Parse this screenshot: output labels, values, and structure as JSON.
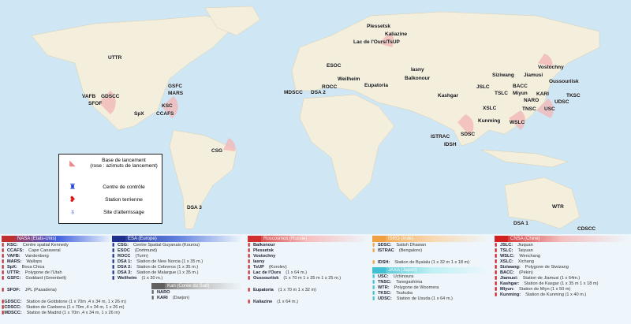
{
  "map": {
    "labels": [
      "UTTR",
      "GSFC",
      "MARS",
      "VAFB",
      "GDSCC",
      "SFOF",
      "KSC",
      "SpX",
      "CCAFS",
      "CSG",
      "DSA 3",
      "ESOC",
      "Weilheim",
      "ROCC",
      "MDSCC",
      "DSA 2",
      "Plessetsk",
      "Kaliazine",
      "Lac de l'Ours/TsUP",
      "Iasny",
      "Balkonour",
      "Eupatoria",
      "Vostochny",
      "Siziwang",
      "Jiamusi",
      "Oussouriisk",
      "BACC",
      "JSLC",
      "Miyun",
      "TSLC",
      "KARI",
      "NARO",
      "TKSC",
      "UDSC",
      "USC",
      "TNSC",
      "Kashgar",
      "XSLC",
      "Kunming",
      "WSLC",
      "SDSC",
      "ISTRAC",
      "IDSH",
      "WTR",
      "DSA 1",
      "CDSCC"
    ],
    "colors": {
      "ocean": "#cfe6f5",
      "land": "#f4efdc",
      "launch_rose": "#f2b8b8",
      "control": "#1a3fd0",
      "station": "#e01818",
      "landing": "#1a3fd0"
    }
  },
  "legend": {
    "launch_base": "Base de lancement",
    "launch_rose": "(rose : azimuts de lancement)",
    "control": "Centre de contrôle",
    "station": "Station terrienne",
    "landing": "Site d'atterrissage"
  },
  "agencies": [
    {
      "header": "NASA (Etats-Unis)",
      "entries": [
        [
          "KSC:",
          "Centre spatial Kennedy"
        ],
        [
          "CCAFS:",
          "Cape Canaveral"
        ],
        [
          "VAFB:",
          "Vandenberg"
        ],
        [
          "MARS:",
          "Wallops"
        ],
        [
          "SpX:",
          "Boca Chica"
        ],
        [
          "UTTR:",
          "Polygone de l'Utah"
        ],
        [
          "GSFC:",
          "Goddard (Greenbelt)"
        ],
        [
          "",
          ""
        ],
        [
          "SFOF:",
          "JPL (Pasadena)"
        ],
        [
          "",
          ""
        ],
        [
          "GDSCC:",
          "Station de Goldstone (1 x 70m ,4 x 34 m, 1 x 26 m)"
        ],
        [
          "CDSCC:",
          "Station de Canberra (1 x 70m ,4 x 34 m, 1 x 26 m)"
        ],
        [
          "MDSCC:",
          "Station de Madrid (1 x 70m ,4 x 34 m, 1 x 26 m)"
        ]
      ]
    },
    {
      "header": "ESA (Europe)",
      "entries": [
        [
          "CSG:",
          "Centre Spatial Guyanais (Kourou)"
        ],
        [
          "ESOC",
          "(Dortmund)"
        ],
        [
          "ROCC",
          "(Turin)"
        ],
        [
          "DSA 1:",
          "Station de New Norcia (1 x 35 m.)"
        ],
        [
          "DSA 2:",
          "Station de Cebreros (1 x 35 m.)"
        ],
        [
          "DSA 3:",
          "Station de Malargue (1 x 35 m.)"
        ],
        [
          "Weilheim",
          "(1 x 30 m.)"
        ]
      ],
      "sub": {
        "header": "Kari (Corée du Sud)",
        "entries": [
          [
            "NARO",
            ""
          ],
          [
            "KARI",
            "(Daejon)"
          ]
        ]
      }
    },
    {
      "header": "Roscosmos (Russie)",
      "entries": [
        [
          "Balkonour",
          ""
        ],
        [
          "Plessetsk",
          ""
        ],
        [
          "Vostochny",
          ""
        ],
        [
          "Iasny",
          ""
        ],
        [
          "TsUP",
          "(Korolev)"
        ],
        [
          "Lac de l'Ours",
          "(1 x 64 m.)"
        ],
        [
          "Oussouriisk",
          "(1 x 70 m 1 x 35 m 1 x 25 m.)"
        ],
        [
          "",
          ""
        ],
        [
          "Eupatoria",
          "(1 x 70 m 1 x 32 m)"
        ],
        [
          "",
          ""
        ],
        [
          "Kaliazine",
          "(1 x 64 m.)"
        ]
      ]
    },
    {
      "header": "ISRO (Inde)",
      "entries": [
        [
          "SDSC:",
          "Satish Dhawan"
        ],
        [
          "ISTRAC",
          "(Bengalore)"
        ],
        [
          "",
          ""
        ],
        [
          "IDSH:",
          "Station de Byalalu (1 x 32 m 1 x 18 m)"
        ]
      ],
      "sub": {
        "header": "JAXA (Japon)",
        "entries": [
          [
            "USC:",
            "Uchinoura"
          ],
          [
            "TNSC:",
            "Tanegashima"
          ],
          [
            "WTR:",
            "Polygone de Woomera"
          ],
          [
            "TKSC:",
            "Tsukuba"
          ],
          [
            "UDSC:",
            "Station de Usuda (1 x 64 m.)"
          ]
        ]
      }
    },
    {
      "header": "CNSA (Chine)",
      "entries": [
        [
          "JSLC:",
          "Jiuquan"
        ],
        [
          "TSLC:",
          "Taiyuan"
        ],
        [
          "WSLC:",
          "Wenchang"
        ],
        [
          "XSLC:",
          "Xichang"
        ],
        [
          "Siziwang:",
          "Polygone de Siwizang"
        ],
        [
          "BACC:",
          "(Pékin)"
        ],
        [
          "Jiamusi:",
          "Station de Jiamusi (1 x 64m.)"
        ],
        [
          "Kashgar:",
          "Station de Kasgar (1 x 35 m 1 x 18 m)"
        ],
        [
          "Miyun:",
          "Station de Miyn (1 x 50 m)"
        ],
        [
          "Kunming:",
          "Station de Kunming (1 x 40 m.)"
        ]
      ]
    }
  ]
}
